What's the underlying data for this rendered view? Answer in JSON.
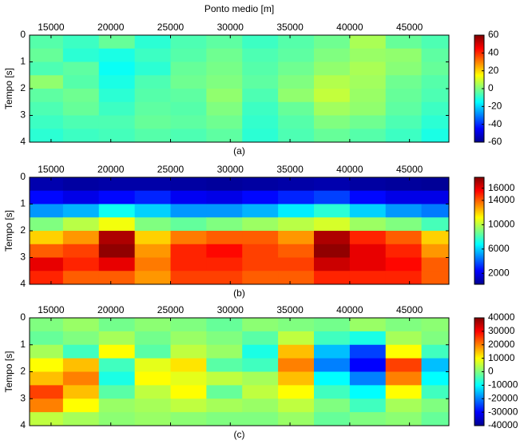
{
  "chart_data": [
    {
      "type": "heatmap",
      "title": "Ponto medio [m]",
      "y_title": "Tempo [s]",
      "caption": "(a)",
      "colormap": "jet",
      "xlim": [
        13200,
        48300
      ],
      "xticks": [
        15000,
        20000,
        25000,
        30000,
        35000,
        40000,
        45000
      ],
      "ylim": [
        0,
        4
      ],
      "y_inverted": true,
      "yticks": [
        0,
        1,
        2,
        3,
        4
      ],
      "xbins": [
        13200,
        16000,
        19000,
        22000,
        25000,
        28000,
        31000,
        34000,
        37000,
        40000,
        43000,
        46000,
        48300
      ],
      "ybins": [
        0,
        0.5,
        1,
        1.5,
        2,
        2.5,
        3,
        3.5,
        4
      ],
      "clim": [
        -60,
        60
      ],
      "cticks": [
        -60,
        -40,
        -20,
        0,
        20,
        40,
        60
      ],
      "z": [
        [
          -5,
          -8,
          -3,
          -10,
          -6,
          -4,
          -8,
          -5,
          -2,
          5,
          -3,
          -6
        ],
        [
          -3,
          -10,
          -12,
          -8,
          -5,
          -2,
          -6,
          -4,
          0,
          3,
          2,
          -4
        ],
        [
          -6,
          -4,
          -14,
          -10,
          -3,
          -1,
          -5,
          -2,
          2,
          5,
          1,
          -3
        ],
        [
          2,
          -5,
          -12,
          -6,
          -2,
          0,
          -4,
          0,
          6,
          4,
          -2,
          -5
        ],
        [
          -4,
          -2,
          -10,
          -5,
          -4,
          2,
          -6,
          2,
          8,
          3,
          -3,
          -6
        ],
        [
          -6,
          -3,
          -8,
          -4,
          -5,
          0,
          -8,
          -3,
          4,
          2,
          -4,
          -8
        ],
        [
          -8,
          -6,
          -6,
          -3,
          -4,
          -2,
          -9,
          -5,
          0,
          -2,
          -6,
          -10
        ],
        [
          -10,
          -8,
          -7,
          -5,
          -6,
          -4,
          -10,
          -6,
          -3,
          -5,
          -8,
          -12
        ]
      ]
    },
    {
      "type": "heatmap",
      "y_title": "Tempo [s]",
      "caption": "(b)",
      "colormap": "jet",
      "xlim": [
        13200,
        48300
      ],
      "xticks": [
        15000,
        20000,
        25000,
        30000,
        35000,
        40000,
        45000
      ],
      "ylim": [
        0,
        4
      ],
      "y_inverted": true,
      "yticks": [
        0,
        1,
        2,
        3,
        4
      ],
      "xbins": [
        13200,
        16000,
        19000,
        22000,
        25000,
        28000,
        31000,
        34000,
        37000,
        40000,
        43000,
        46000,
        48300
      ],
      "ybins": [
        0,
        0.5,
        1,
        1.5,
        2,
        2.5,
        3,
        3.5,
        4
      ],
      "clim": [
        200,
        17800
      ],
      "cticks": [
        2000,
        6000,
        10000,
        14000,
        16000
      ],
      "z": [
        [
          1000,
          800,
          900,
          900,
          800,
          700,
          800,
          900,
          1000,
          800,
          700,
          600
        ],
        [
          2500,
          2000,
          2500,
          3000,
          2200,
          2000,
          2500,
          3000,
          3500,
          2500,
          2000,
          2000
        ],
        [
          5000,
          5500,
          7000,
          6000,
          5000,
          5000,
          5500,
          6500,
          7500,
          6000,
          5000,
          4500
        ],
        [
          9000,
          10000,
          11000,
          9000,
          8500,
          9000,
          9500,
          10000,
          10500,
          9500,
          9000,
          8000
        ],
        [
          12000,
          13000,
          17000,
          12000,
          13500,
          14000,
          14000,
          13000,
          17000,
          15000,
          14000,
          12000
        ],
        [
          14000,
          14500,
          17500,
          13000,
          15000,
          15500,
          14500,
          14000,
          17500,
          16000,
          15000,
          13000
        ],
        [
          16000,
          15000,
          16000,
          13500,
          15000,
          15000,
          14500,
          14500,
          16500,
          16000,
          15500,
          14000
        ],
        [
          15000,
          14000,
          14000,
          13000,
          14500,
          14500,
          14000,
          14000,
          15000,
          15000,
          15000,
          14000
        ]
      ]
    },
    {
      "type": "heatmap",
      "y_title": "Tempo [s]",
      "caption": "(c)",
      "colormap": "jet",
      "xlim": [
        13200,
        48300
      ],
      "xticks": [
        15000,
        20000,
        25000,
        30000,
        35000,
        40000,
        45000
      ],
      "ylim": [
        0,
        4
      ],
      "y_inverted": true,
      "yticks": [
        0,
        1,
        2,
        3,
        4
      ],
      "xbins": [
        13200,
        16000,
        19000,
        22000,
        25000,
        28000,
        31000,
        34000,
        37000,
        40000,
        43000,
        46000,
        48300
      ],
      "ybins": [
        0,
        0.5,
        1,
        1.5,
        2,
        2.5,
        3,
        3.5,
        4
      ],
      "clim": [
        -40000,
        40000
      ],
      "cticks": [
        -40000,
        -30000,
        -20000,
        -10000,
        0,
        10000,
        20000,
        30000,
        40000
      ],
      "z": [
        [
          0,
          2000,
          -1000,
          1000,
          0,
          -2000,
          1000,
          0,
          -1000,
          2000,
          0,
          1000
        ],
        [
          -2000,
          0,
          3000,
          -1000,
          2000,
          0,
          -3000,
          5000,
          -5000,
          -8000,
          3000,
          0
        ],
        [
          3000,
          -5000,
          10000,
          -3000,
          5000,
          2000,
          -8000,
          15000,
          -15000,
          -25000,
          10000,
          -5000
        ],
        [
          10000,
          15000,
          -5000,
          8000,
          12000,
          -3000,
          -5000,
          20000,
          -20000,
          -30000,
          25000,
          -15000
        ],
        [
          15000,
          20000,
          -8000,
          10000,
          8000,
          5000,
          3000,
          15000,
          -10000,
          -20000,
          20000,
          -10000
        ],
        [
          25000,
          15000,
          -3000,
          5000,
          10000,
          -2000,
          5000,
          10000,
          -5000,
          -10000,
          10000,
          -5000
        ],
        [
          20000,
          10000,
          2000,
          3000,
          5000,
          3000,
          2000,
          5000,
          0,
          -5000,
          3000,
          0
        ],
        [
          5000,
          3000,
          1000,
          2000,
          1000,
          0,
          0,
          2000,
          -2000,
          0,
          1000,
          -2000
        ]
      ]
    }
  ]
}
